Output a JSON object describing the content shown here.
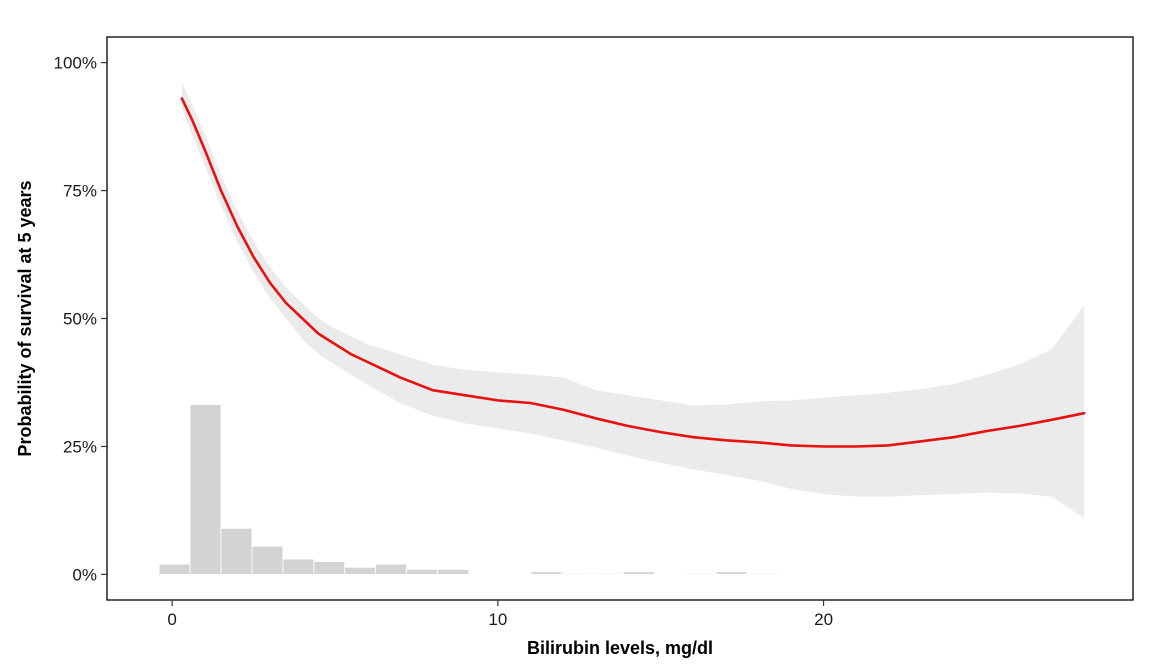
{
  "chart_data": {
    "type": "line",
    "xlabel": "Bilirubin levels, mg/dl",
    "ylabel": "Probability of survival at 5 years",
    "xlim": [
      -2,
      29.5
    ],
    "ylim": [
      -0.05,
      1.05
    ],
    "x_ticks": [
      0,
      10,
      20
    ],
    "x_tick_labels": [
      "0",
      "10",
      "20"
    ],
    "y_ticks": [
      0,
      0.25,
      0.5,
      0.75,
      1.0
    ],
    "y_tick_labels": [
      "0%",
      "25%",
      "50%",
      "75%",
      "100%"
    ],
    "grid": false,
    "legend": "none",
    "colors": {
      "line": "#e8110f",
      "band": "#ebebeb",
      "histogram": "#d3d3d3",
      "histogram_edge": "#ffffff",
      "axis": "#000000"
    },
    "curve": {
      "x": [
        0.3,
        0.6,
        1.0,
        1.5,
        2.0,
        2.5,
        3.0,
        3.5,
        4.0,
        4.5,
        5.0,
        5.5,
        6.0,
        7.0,
        8.0,
        9.0,
        10.0,
        11.0,
        12.0,
        13.0,
        14.0,
        15.0,
        16.0,
        17.0,
        18.0,
        19.0,
        20.0,
        21.0,
        22.0,
        23.0,
        24.0,
        25.0,
        26.0,
        27.0,
        28.0
      ],
      "y": [
        0.93,
        0.89,
        0.83,
        0.75,
        0.68,
        0.62,
        0.57,
        0.53,
        0.5,
        0.47,
        0.45,
        0.43,
        0.415,
        0.385,
        0.36,
        0.35,
        0.34,
        0.335,
        0.322,
        0.305,
        0.29,
        0.278,
        0.268,
        0.262,
        0.258,
        0.252,
        0.25,
        0.25,
        0.252,
        0.26,
        0.268,
        0.28,
        0.29,
        0.302,
        0.315
      ]
    },
    "band": {
      "x": [
        0.3,
        0.6,
        1.0,
        1.5,
        2.0,
        2.5,
        3.0,
        3.5,
        4.0,
        4.5,
        5.0,
        5.5,
        6.0,
        7.0,
        8.0,
        9.0,
        10.0,
        11.0,
        12.0,
        13.0,
        14.0,
        15.0,
        16.0,
        17.0,
        18.0,
        19.0,
        20.0,
        21.0,
        22.0,
        23.0,
        24.0,
        25.0,
        26.0,
        27.0,
        28.0
      ],
      "lower": [
        0.91,
        0.86,
        0.8,
        0.72,
        0.65,
        0.59,
        0.54,
        0.5,
        0.46,
        0.43,
        0.41,
        0.39,
        0.37,
        0.335,
        0.31,
        0.295,
        0.285,
        0.275,
        0.262,
        0.248,
        0.232,
        0.218,
        0.205,
        0.195,
        0.183,
        0.167,
        0.157,
        0.152,
        0.152,
        0.155,
        0.157,
        0.16,
        0.158,
        0.152,
        0.11
      ],
      "upper": [
        0.96,
        0.92,
        0.86,
        0.78,
        0.71,
        0.65,
        0.6,
        0.56,
        0.53,
        0.5,
        0.48,
        0.465,
        0.45,
        0.43,
        0.41,
        0.4,
        0.395,
        0.39,
        0.385,
        0.36,
        0.35,
        0.34,
        0.33,
        0.332,
        0.338,
        0.34,
        0.345,
        0.35,
        0.355,
        0.362,
        0.372,
        0.39,
        0.41,
        0.44,
        0.525
      ]
    },
    "histogram": {
      "bin_width": 0.95,
      "bins": [
        {
          "start": -0.4,
          "value": 0.02
        },
        {
          "start": 0.55,
          "value": 0.332
        },
        {
          "start": 1.5,
          "value": 0.09
        },
        {
          "start": 2.45,
          "value": 0.055
        },
        {
          "start": 3.4,
          "value": 0.03
        },
        {
          "start": 4.35,
          "value": 0.025
        },
        {
          "start": 5.3,
          "value": 0.014
        },
        {
          "start": 6.25,
          "value": 0.02
        },
        {
          "start": 7.2,
          "value": 0.01
        },
        {
          "start": 8.15,
          "value": 0.01
        },
        {
          "start": 11.0,
          "value": 0.005
        },
        {
          "start": 11.95,
          "value": 0.002
        },
        {
          "start": 12.9,
          "value": 0.002
        },
        {
          "start": 13.85,
          "value": 0.005
        },
        {
          "start": 15.75,
          "value": 0.002
        },
        {
          "start": 16.7,
          "value": 0.005
        },
        {
          "start": 17.65,
          "value": 0.002
        }
      ]
    }
  }
}
